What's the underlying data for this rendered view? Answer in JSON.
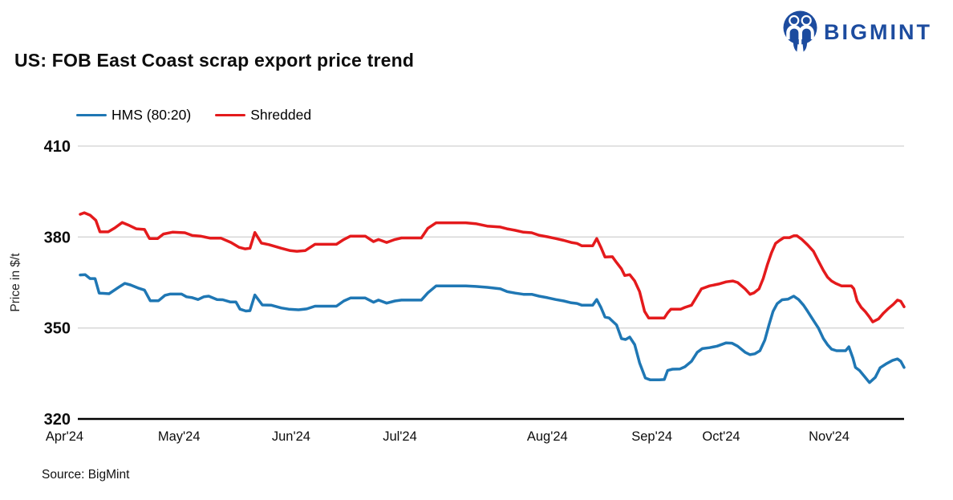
{
  "logo": {
    "text": "BIGMINT",
    "color": "#1d4c9f"
  },
  "title": "US: FOB East Coast scrap export price trend",
  "source": "Source: BigMint",
  "chart_data": {
    "type": "line",
    "title": "US: FOB East Coast scrap export price trend",
    "xlabel": "",
    "ylabel": "Price in $/t",
    "ylim": [
      320,
      410
    ],
    "yticks": [
      410,
      380,
      350,
      320
    ],
    "grid": "horizontal",
    "grid_color": "#d8d8d8",
    "axis_color": "#000000",
    "legend_position": "top-left",
    "x_unit": "time, Apr 2024 to mid-Nov 2024, normalized 0-1 across plot",
    "x_ticks": [
      {
        "label": "Apr'24",
        "u": -0.019
      },
      {
        "label": "May'24",
        "u": 0.12
      },
      {
        "label": "Jun'24",
        "u": 0.256
      },
      {
        "label": "Jul'24",
        "u": 0.388
      },
      {
        "label": "Aug'24",
        "u": 0.567
      },
      {
        "label": "Sep'24",
        "u": 0.694
      },
      {
        "label": "Oct'24",
        "u": 0.778
      },
      {
        "label": "Nov'24",
        "u": 0.909
      }
    ],
    "series": [
      {
        "name": "HMS (80:20)",
        "color": "#1f77b4",
        "points": [
          [
            0.0,
            367.5
          ],
          [
            0.006,
            367.6
          ],
          [
            0.012,
            366.3
          ],
          [
            0.018,
            366.3
          ],
          [
            0.023,
            361.5
          ],
          [
            0.035,
            361.3
          ],
          [
            0.047,
            363.5
          ],
          [
            0.054,
            364.7
          ],
          [
            0.061,
            364.2
          ],
          [
            0.07,
            363.2
          ],
          [
            0.078,
            362.5
          ],
          [
            0.085,
            359.0
          ],
          [
            0.095,
            359.0
          ],
          [
            0.103,
            360.8
          ],
          [
            0.109,
            361.2
          ],
          [
            0.123,
            361.2
          ],
          [
            0.129,
            360.3
          ],
          [
            0.136,
            360.0
          ],
          [
            0.143,
            359.4
          ],
          [
            0.15,
            360.3
          ],
          [
            0.156,
            360.5
          ],
          [
            0.166,
            359.4
          ],
          [
            0.173,
            359.3
          ],
          [
            0.182,
            358.6
          ],
          [
            0.189,
            358.6
          ],
          [
            0.194,
            356.2
          ],
          [
            0.201,
            355.6
          ],
          [
            0.206,
            355.7
          ],
          [
            0.212,
            360.9
          ],
          [
            0.221,
            357.6
          ],
          [
            0.232,
            357.5
          ],
          [
            0.244,
            356.6
          ],
          [
            0.253,
            356.2
          ],
          [
            0.265,
            356.0
          ],
          [
            0.275,
            356.3
          ],
          [
            0.285,
            357.2
          ],
          [
            0.297,
            357.2
          ],
          [
            0.311,
            357.2
          ],
          [
            0.32,
            358.9
          ],
          [
            0.328,
            359.9
          ],
          [
            0.346,
            359.9
          ],
          [
            0.356,
            358.5
          ],
          [
            0.362,
            359.2
          ],
          [
            0.372,
            358.2
          ],
          [
            0.382,
            358.9
          ],
          [
            0.39,
            359.2
          ],
          [
            0.414,
            359.2
          ],
          [
            0.422,
            361.6
          ],
          [
            0.432,
            363.9
          ],
          [
            0.468,
            363.9
          ],
          [
            0.48,
            363.7
          ],
          [
            0.494,
            363.4
          ],
          [
            0.51,
            362.9
          ],
          [
            0.518,
            362.0
          ],
          [
            0.528,
            361.5
          ],
          [
            0.538,
            361.1
          ],
          [
            0.548,
            361.1
          ],
          [
            0.557,
            360.5
          ],
          [
            0.567,
            360.0
          ],
          [
            0.577,
            359.4
          ],
          [
            0.587,
            358.9
          ],
          [
            0.596,
            358.3
          ],
          [
            0.603,
            358.1
          ],
          [
            0.609,
            357.5
          ],
          [
            0.622,
            357.5
          ],
          [
            0.627,
            359.4
          ],
          [
            0.632,
            356.8
          ],
          [
            0.637,
            353.6
          ],
          [
            0.642,
            353.3
          ],
          [
            0.651,
            351.0
          ],
          [
            0.657,
            346.5
          ],
          [
            0.662,
            346.2
          ],
          [
            0.667,
            347.0
          ],
          [
            0.673,
            344.5
          ],
          [
            0.679,
            338.5
          ],
          [
            0.686,
            333.5
          ],
          [
            0.692,
            332.9
          ],
          [
            0.703,
            332.9
          ],
          [
            0.709,
            333.0
          ],
          [
            0.713,
            336.0
          ],
          [
            0.719,
            336.4
          ],
          [
            0.728,
            336.5
          ],
          [
            0.734,
            337.2
          ],
          [
            0.742,
            339.0
          ],
          [
            0.749,
            342.0
          ],
          [
            0.755,
            343.2
          ],
          [
            0.764,
            343.5
          ],
          [
            0.773,
            344.0
          ],
          [
            0.784,
            345.1
          ],
          [
            0.791,
            345.0
          ],
          [
            0.798,
            344.0
          ],
          [
            0.807,
            342.0
          ],
          [
            0.813,
            341.2
          ],
          [
            0.819,
            341.5
          ],
          [
            0.825,
            342.5
          ],
          [
            0.831,
            346.0
          ],
          [
            0.836,
            351.0
          ],
          [
            0.841,
            355.5
          ],
          [
            0.846,
            358.0
          ],
          [
            0.852,
            359.3
          ],
          [
            0.859,
            359.5
          ],
          [
            0.866,
            360.5
          ],
          [
            0.872,
            359.4
          ],
          [
            0.878,
            357.5
          ],
          [
            0.883,
            355.5
          ],
          [
            0.89,
            352.5
          ],
          [
            0.896,
            350.0
          ],
          [
            0.902,
            346.5
          ],
          [
            0.907,
            344.5
          ],
          [
            0.912,
            343.0
          ],
          [
            0.918,
            342.5
          ],
          [
            0.929,
            342.5
          ],
          [
            0.933,
            343.8
          ],
          [
            0.938,
            340.0
          ],
          [
            0.941,
            337.0
          ],
          [
            0.946,
            336.0
          ],
          [
            0.952,
            334.0
          ],
          [
            0.958,
            332.0
          ],
          [
            0.965,
            333.7
          ],
          [
            0.971,
            336.9
          ],
          [
            0.979,
            338.3
          ],
          [
            0.986,
            339.3
          ],
          [
            0.992,
            339.8
          ],
          [
            0.996,
            339.0
          ],
          [
            1.0,
            337.0
          ]
        ]
      },
      {
        "name": "Shredded",
        "color": "#e41a1c",
        "points": [
          [
            0.0,
            387.5
          ],
          [
            0.005,
            388.0
          ],
          [
            0.012,
            387.2
          ],
          [
            0.019,
            385.5
          ],
          [
            0.024,
            381.7
          ],
          [
            0.034,
            381.7
          ],
          [
            0.042,
            383.0
          ],
          [
            0.051,
            384.8
          ],
          [
            0.058,
            384.0
          ],
          [
            0.068,
            382.7
          ],
          [
            0.078,
            382.5
          ],
          [
            0.084,
            379.5
          ],
          [
            0.094,
            379.5
          ],
          [
            0.101,
            381.0
          ],
          [
            0.112,
            381.6
          ],
          [
            0.127,
            381.4
          ],
          [
            0.136,
            380.5
          ],
          [
            0.146,
            380.3
          ],
          [
            0.158,
            379.6
          ],
          [
            0.171,
            379.6
          ],
          [
            0.183,
            378.2
          ],
          [
            0.193,
            376.6
          ],
          [
            0.2,
            376.1
          ],
          [
            0.206,
            376.3
          ],
          [
            0.212,
            381.5
          ],
          [
            0.22,
            378.0
          ],
          [
            0.229,
            377.5
          ],
          [
            0.244,
            376.3
          ],
          [
            0.255,
            375.5
          ],
          [
            0.263,
            375.3
          ],
          [
            0.273,
            375.5
          ],
          [
            0.285,
            377.6
          ],
          [
            0.297,
            377.6
          ],
          [
            0.311,
            377.6
          ],
          [
            0.32,
            379.2
          ],
          [
            0.328,
            380.3
          ],
          [
            0.346,
            380.3
          ],
          [
            0.356,
            378.5
          ],
          [
            0.362,
            379.2
          ],
          [
            0.372,
            378.2
          ],
          [
            0.382,
            379.2
          ],
          [
            0.39,
            379.7
          ],
          [
            0.414,
            379.7
          ],
          [
            0.422,
            382.9
          ],
          [
            0.432,
            384.7
          ],
          [
            0.468,
            384.7
          ],
          [
            0.48,
            384.4
          ],
          [
            0.494,
            383.6
          ],
          [
            0.51,
            383.3
          ],
          [
            0.518,
            382.7
          ],
          [
            0.528,
            382.2
          ],
          [
            0.538,
            381.6
          ],
          [
            0.548,
            381.4
          ],
          [
            0.557,
            380.6
          ],
          [
            0.567,
            380.1
          ],
          [
            0.577,
            379.5
          ],
          [
            0.587,
            378.9
          ],
          [
            0.596,
            378.2
          ],
          [
            0.603,
            377.9
          ],
          [
            0.609,
            377.1
          ],
          [
            0.622,
            377.1
          ],
          [
            0.627,
            379.5
          ],
          [
            0.632,
            376.6
          ],
          [
            0.637,
            373.4
          ],
          [
            0.646,
            373.5
          ],
          [
            0.651,
            371.6
          ],
          [
            0.657,
            369.5
          ],
          [
            0.661,
            367.3
          ],
          [
            0.667,
            367.6
          ],
          [
            0.673,
            365.5
          ],
          [
            0.679,
            362.0
          ],
          [
            0.685,
            355.5
          ],
          [
            0.69,
            353.3
          ],
          [
            0.709,
            353.3
          ],
          [
            0.713,
            355.0
          ],
          [
            0.717,
            356.2
          ],
          [
            0.729,
            356.2
          ],
          [
            0.734,
            356.8
          ],
          [
            0.742,
            357.5
          ],
          [
            0.748,
            360.2
          ],
          [
            0.754,
            362.9
          ],
          [
            0.764,
            363.9
          ],
          [
            0.775,
            364.5
          ],
          [
            0.784,
            365.2
          ],
          [
            0.792,
            365.5
          ],
          [
            0.798,
            365.0
          ],
          [
            0.807,
            362.9
          ],
          [
            0.813,
            361.1
          ],
          [
            0.818,
            361.6
          ],
          [
            0.824,
            362.9
          ],
          [
            0.829,
            366.3
          ],
          [
            0.834,
            370.8
          ],
          [
            0.839,
            374.8
          ],
          [
            0.844,
            377.9
          ],
          [
            0.849,
            378.9
          ],
          [
            0.854,
            379.8
          ],
          [
            0.861,
            379.8
          ],
          [
            0.866,
            380.4
          ],
          [
            0.87,
            380.4
          ],
          [
            0.876,
            379.2
          ],
          [
            0.883,
            377.4
          ],
          [
            0.89,
            375.3
          ],
          [
            0.896,
            372.1
          ],
          [
            0.902,
            369.0
          ],
          [
            0.907,
            366.8
          ],
          [
            0.912,
            365.5
          ],
          [
            0.917,
            364.7
          ],
          [
            0.924,
            363.9
          ],
          [
            0.936,
            363.9
          ],
          [
            0.939,
            362.9
          ],
          [
            0.943,
            358.9
          ],
          [
            0.948,
            356.8
          ],
          [
            0.953,
            355.4
          ],
          [
            0.958,
            353.6
          ],
          [
            0.962,
            352.0
          ],
          [
            0.969,
            353.0
          ],
          [
            0.975,
            354.9
          ],
          [
            0.98,
            356.2
          ],
          [
            0.987,
            357.8
          ],
          [
            0.992,
            359.2
          ],
          [
            0.996,
            358.8
          ],
          [
            1.0,
            357.0
          ]
        ]
      }
    ]
  }
}
